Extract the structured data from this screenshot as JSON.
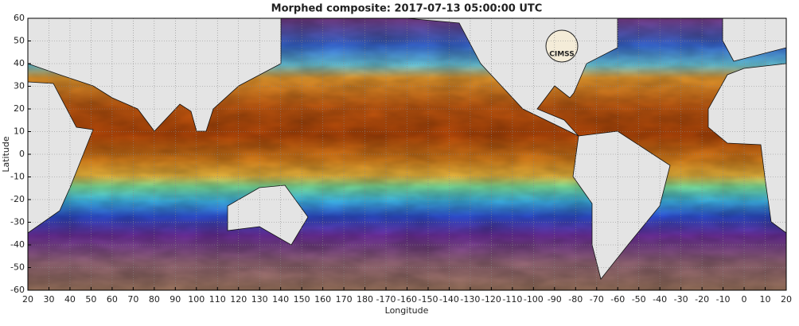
{
  "map": {
    "title": "Morphed composite: 2017-07-13 05:00:00 UTC",
    "xlabel": "Longitude",
    "ylabel": "Latitude",
    "logo": "CIMSS",
    "xlim": [
      20,
      380
    ],
    "ylim": [
      -60,
      60
    ],
    "grid": true,
    "xticks": [
      20,
      30,
      40,
      50,
      60,
      70,
      80,
      90,
      100,
      110,
      120,
      130,
      140,
      150,
      160,
      170,
      180,
      {
        "value": 190,
        "label": "-170"
      },
      {
        "value": 200,
        "label": "-160"
      },
      {
        "value": 210,
        "label": "-150"
      },
      {
        "value": 220,
        "label": "-140"
      },
      {
        "value": 230,
        "label": "-130"
      },
      {
        "value": 240,
        "label": "-120"
      },
      {
        "value": 250,
        "label": "-110"
      },
      {
        "value": 260,
        "label": "-100"
      },
      {
        "value": 270,
        "label": "-90"
      },
      {
        "value": 280,
        "label": "-80"
      },
      {
        "value": 290,
        "label": "-70"
      },
      {
        "value": 300,
        "label": "-60"
      },
      {
        "value": 310,
        "label": "-50"
      },
      {
        "value": 320,
        "label": "-40"
      },
      {
        "value": 330,
        "label": "-30"
      },
      {
        "value": 340,
        "label": "-20"
      },
      {
        "value": 350,
        "label": "-10"
      },
      {
        "value": 360,
        "label": "0"
      },
      {
        "value": 370,
        "label": "10"
      },
      {
        "value": 380,
        "label": "20"
      }
    ],
    "yticks": [
      60,
      50,
      40,
      30,
      20,
      10,
      0,
      -10,
      -20,
      -30,
      -40,
      -50,
      -60
    ]
  }
}
